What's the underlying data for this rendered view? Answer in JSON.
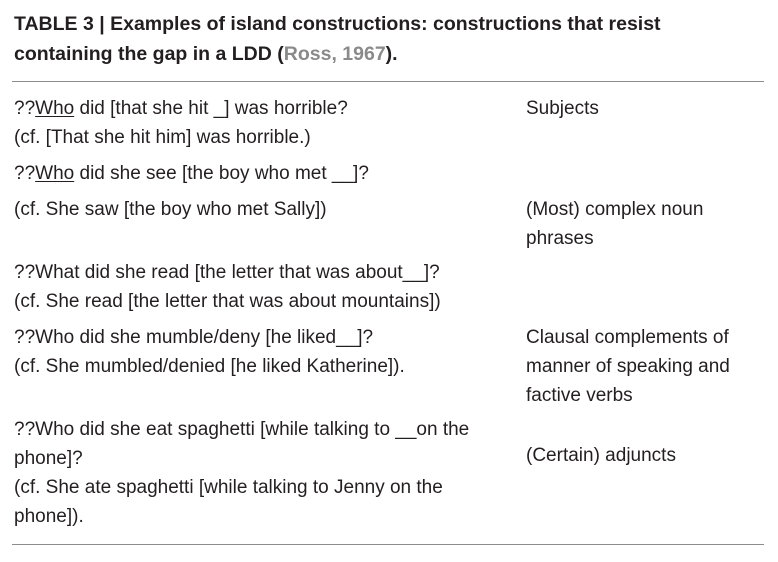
{
  "caption": {
    "label": "TABLE 3 |",
    "text": "Examples of island constructions: constructions that resist containing the gap in a LDD",
    "open_paren": "(",
    "citation": "Ross, 1967",
    "close": ")."
  },
  "rows": [
    {
      "examples": [
        {
          "prefix": "??",
          "underlined": "Who",
          "rest": " did [that she hit _] was horrible?"
        },
        {
          "prefix": "",
          "underlined": "",
          "rest": "(cf. [That she hit him] was horrible.)"
        }
      ],
      "category": "Subjects"
    },
    {
      "examples": [
        {
          "prefix": "??",
          "underlined": "Who",
          "rest": " did she see [the boy who met __]?"
        }
      ],
      "category": ""
    },
    {
      "examples": [
        {
          "prefix": "",
          "underlined": "",
          "rest": "(cf. She saw [the boy who met Sally])"
        }
      ],
      "category": "(Most) complex noun phrases"
    },
    {
      "examples": [
        {
          "prefix": "",
          "underlined": "",
          "rest": "??What did she read [the letter that was about__]?"
        },
        {
          "prefix": "",
          "underlined": "",
          "rest": "(cf. She read [the letter that was about mountains])"
        }
      ],
      "category": ""
    },
    {
      "examples": [
        {
          "prefix": "",
          "underlined": "",
          "rest": "??Who did she mumble/deny [he liked__]?"
        },
        {
          "prefix": "",
          "underlined": "",
          "rest": "(cf. She mumbled/denied [he liked Katherine])."
        }
      ],
      "category": "Clausal complements of manner of speaking and factive verbs"
    },
    {
      "examples": [
        {
          "prefix": "",
          "underlined": "",
          "rest": "??Who did she eat spaghetti [while talking to __on the phone]?"
        },
        {
          "prefix": "",
          "underlined": "",
          "rest": "(cf. She ate spaghetti [while talking to Jenny on the phone])."
        }
      ],
      "category": "(Certain) adjuncts"
    }
  ]
}
